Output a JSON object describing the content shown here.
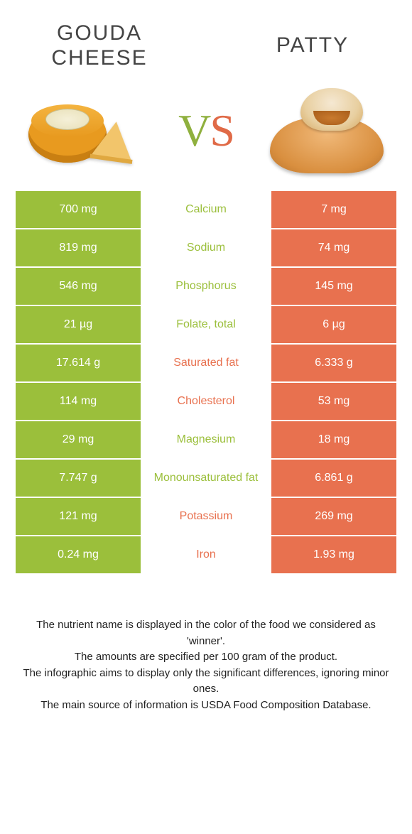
{
  "colors": {
    "left_bg": "#9bbf3b",
    "right_bg": "#e8714f",
    "left_text": "#9bbf3b",
    "right_text": "#e8714f"
  },
  "left_food": {
    "title_line1": "GOUDA",
    "title_line2": "CHEESE"
  },
  "right_food": {
    "title": "PATTY"
  },
  "vs": {
    "v": "V",
    "s": "S"
  },
  "rows": [
    {
      "left": "700 mg",
      "name": "Calcium",
      "right": "7 mg",
      "winner": "left"
    },
    {
      "left": "819 mg",
      "name": "Sodium",
      "right": "74 mg",
      "winner": "left"
    },
    {
      "left": "546 mg",
      "name": "Phosphorus",
      "right": "145 mg",
      "winner": "left"
    },
    {
      "left": "21 µg",
      "name": "Folate, total",
      "right": "6 µg",
      "winner": "left"
    },
    {
      "left": "17.614 g",
      "name": "Saturated fat",
      "right": "6.333 g",
      "winner": "right"
    },
    {
      "left": "114 mg",
      "name": "Cholesterol",
      "right": "53 mg",
      "winner": "right"
    },
    {
      "left": "29 mg",
      "name": "Magnesium",
      "right": "18 mg",
      "winner": "left"
    },
    {
      "left": "7.747 g",
      "name": "Monounsaturated fat",
      "right": "6.861 g",
      "winner": "left"
    },
    {
      "left": "121 mg",
      "name": "Potassium",
      "right": "269 mg",
      "winner": "right"
    },
    {
      "left": "0.24 mg",
      "name": "Iron",
      "right": "1.93 mg",
      "winner": "right"
    }
  ],
  "footer": {
    "line1": "The nutrient name is displayed in the color of the food we considered as 'winner'.",
    "line2": "The amounts are specified per 100 gram of the product.",
    "line3": "The infographic aims to display only the significant differences, ignoring minor ones.",
    "line4": "The main source of information is USDA Food Composition Database."
  }
}
